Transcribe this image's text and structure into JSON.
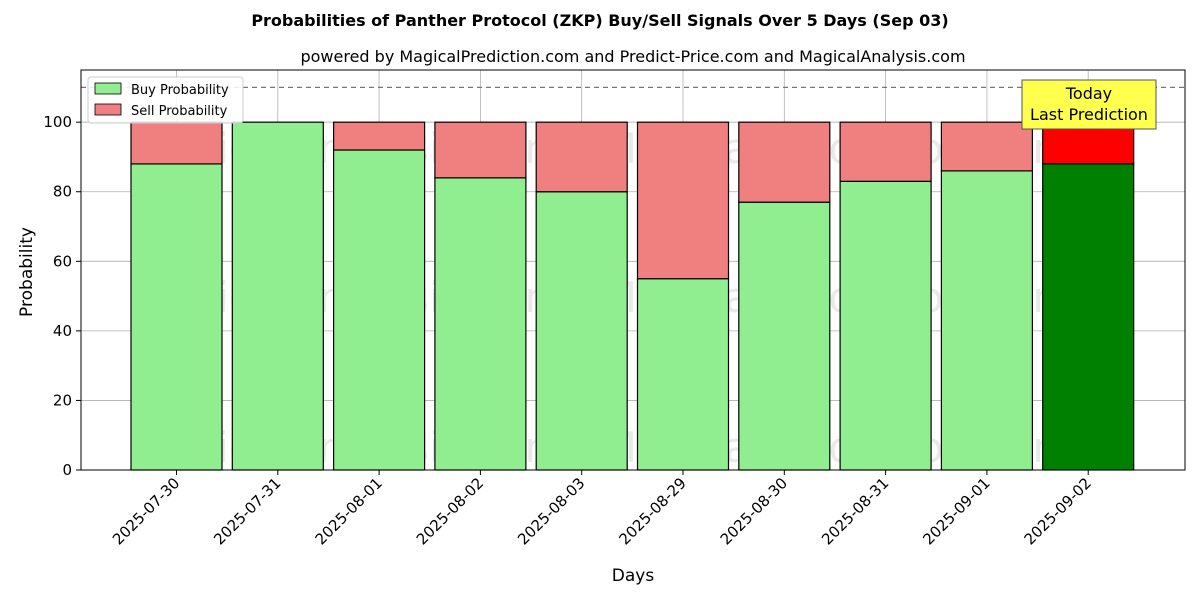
{
  "chart_data": {
    "type": "bar",
    "stacked": true,
    "title": "Probabilities of Panther Protocol (ZKP) Buy/Sell Signals Over 5 Days (Sep 03)",
    "subtitle": "powered by MagicalPrediction.com and Predict-Price.com and MagicalAnalysis.com",
    "xlabel": "Days",
    "ylabel": "Probability",
    "ylim": [
      0,
      115
    ],
    "yticks": [
      0,
      20,
      40,
      60,
      80,
      100
    ],
    "grid": true,
    "legend_position": "top-left",
    "reference_line": 110,
    "categories": [
      "2025-07-30",
      "2025-07-31",
      "2025-08-01",
      "2025-08-02",
      "2025-08-03",
      "2025-08-29",
      "2025-08-30",
      "2025-08-31",
      "2025-09-01",
      "2025-09-02"
    ],
    "series": [
      {
        "name": "Buy Probability",
        "values": [
          88,
          100,
          92,
          84,
          80,
          55,
          77,
          83,
          86,
          88
        ],
        "color": "#90ee90",
        "highlight_color": "#008000"
      },
      {
        "name": "Sell Probability",
        "values": [
          12,
          0,
          8,
          16,
          20,
          45,
          23,
          17,
          14,
          12
        ],
        "color": "#f08080",
        "highlight_color": "#ff0000"
      }
    ],
    "highlight_index": 9,
    "annotation": {
      "line1": "Today",
      "line2": "Last Prediction",
      "bg_color": "#ffff4d"
    },
    "watermarks": [
      "MagicalAnalysis.com",
      "MagicalPrediction.com"
    ]
  }
}
